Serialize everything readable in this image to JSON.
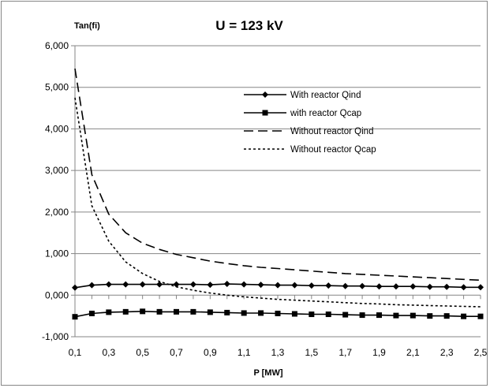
{
  "chart_data": {
    "type": "line",
    "title": "U = 123 kV",
    "ylabel": "Tan(fi)",
    "xlabel": "P [MW]",
    "ylim": [
      -1,
      6
    ],
    "xlim": [
      0.1,
      2.5
    ],
    "grid": "horizontal",
    "legend_position": "upper-right",
    "y_ticks": [
      "-1,000",
      "0,000",
      "1,000",
      "2,000",
      "3,000",
      "4,000",
      "5,000",
      "6,000"
    ],
    "x_ticks": [
      "0,1",
      "0,3",
      "0,5",
      "0,7",
      "0,9",
      "1,1",
      "1,3",
      "1,5",
      "1,7",
      "1,9",
      "2,1",
      "2,3",
      "2,5"
    ],
    "x": [
      0.1,
      0.2,
      0.3,
      0.4,
      0.5,
      0.6,
      0.7,
      0.8,
      0.9,
      1.0,
      1.1,
      1.2,
      1.3,
      1.4,
      1.5,
      1.6,
      1.7,
      1.8,
      1.9,
      2.0,
      2.1,
      2.2,
      2.3,
      2.4,
      2.5
    ],
    "series": [
      {
        "name": "With reactor Qind",
        "style": "solid-diamond",
        "values": [
          0.18,
          0.24,
          0.26,
          0.26,
          0.26,
          0.26,
          0.26,
          0.26,
          0.25,
          0.27,
          0.26,
          0.25,
          0.24,
          0.24,
          0.23,
          0.23,
          0.22,
          0.22,
          0.21,
          0.21,
          0.21,
          0.2,
          0.2,
          0.19,
          0.19
        ]
      },
      {
        "name": "with reactor Qcap",
        "style": "solid-square",
        "values": [
          -0.52,
          -0.44,
          -0.41,
          -0.4,
          -0.39,
          -0.4,
          -0.4,
          -0.4,
          -0.41,
          -0.42,
          -0.43,
          -0.43,
          -0.44,
          -0.45,
          -0.46,
          -0.46,
          -0.47,
          -0.48,
          -0.48,
          -0.49,
          -0.49,
          -0.5,
          -0.5,
          -0.51,
          -0.51
        ]
      },
      {
        "name": "Without reactor Qind",
        "style": "dashed",
        "values": [
          5.45,
          2.9,
          1.95,
          1.5,
          1.25,
          1.1,
          0.98,
          0.9,
          0.82,
          0.76,
          0.71,
          0.67,
          0.64,
          0.61,
          0.58,
          0.55,
          0.52,
          0.5,
          0.48,
          0.46,
          0.44,
          0.42,
          0.4,
          0.38,
          0.36
        ]
      },
      {
        "name": "Without reactor Qcap",
        "style": "dotted",
        "values": [
          4.75,
          2.15,
          1.3,
          0.8,
          0.52,
          0.33,
          0.2,
          0.12,
          0.05,
          0.0,
          -0.04,
          -0.07,
          -0.1,
          -0.12,
          -0.14,
          -0.16,
          -0.18,
          -0.2,
          -0.21,
          -0.23,
          -0.24,
          -0.25,
          -0.26,
          -0.27,
          -0.28
        ]
      }
    ]
  }
}
